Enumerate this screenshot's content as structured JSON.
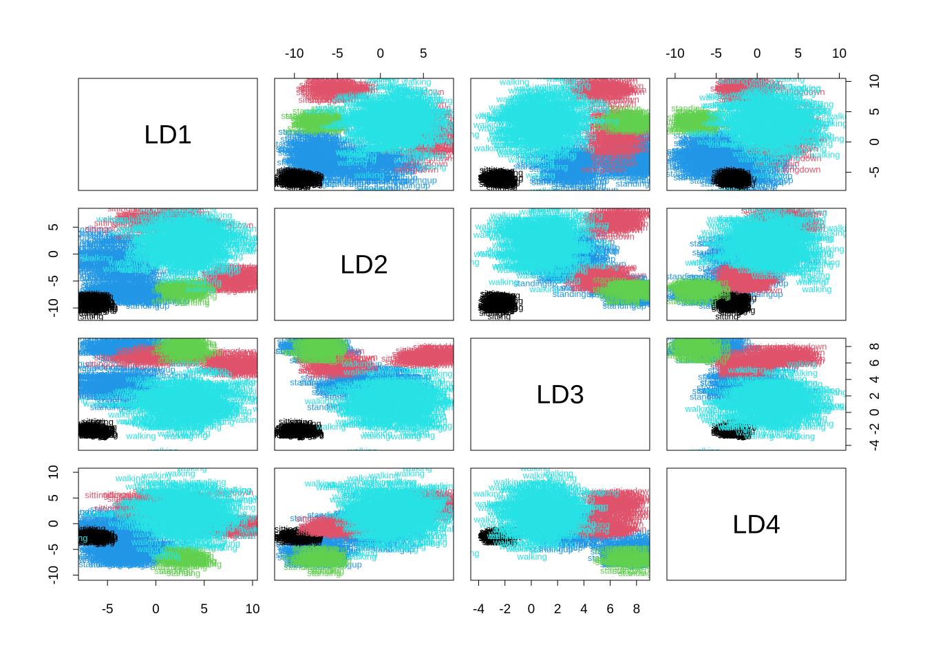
{
  "chart_data": {
    "type": "scatter",
    "variables": [
      "LD1",
      "LD2",
      "LD3",
      "LD4"
    ],
    "ranges": {
      "LD1": [
        -8,
        10.5
      ],
      "LD2": [
        -12.3,
        8.5
      ],
      "LD3": [
        -4.6,
        9
      ],
      "LD4": [
        -11,
        10.8
      ]
    },
    "ticks": {
      "LD1": [
        -5,
        0,
        5,
        10
      ],
      "LD2": [
        -10,
        -5,
        0,
        5
      ],
      "LD3": [
        -4,
        -2,
        0,
        2,
        4,
        6,
        8
      ],
      "LD4": [
        -10,
        -5,
        0,
        5,
        10
      ]
    },
    "class_colors": {
      "sitting": "#000000",
      "sittingdown": "#DF536B",
      "standing": "#61D04F",
      "standingup": "#2297E6",
      "walking": "#28E2E5"
    },
    "point_labels": [
      "sitting",
      "sittingdown",
      "standing",
      "standingup",
      "walking"
    ],
    "clusters": {
      "sitting": [
        {
          "c": [
            -6.5,
            -9.5,
            -2.5,
            -3.0
          ],
          "s": [
            0.6,
            0.8,
            0.35,
            0.6
          ]
        }
      ],
      "sittingdown": [
        {
          "c": [
            0.5,
            5.5,
            6.5,
            3.5
          ],
          "s": [
            2.5,
            1.0,
            0.6,
            1.2
          ]
        },
        {
          "c": [
            8.2,
            -5.0,
            5.5,
            -1.5
          ],
          "s": [
            0.9,
            1.2,
            0.6,
            0.8
          ]
        }
      ],
      "standing": [
        {
          "c": [
            3.0,
            -7.0,
            7.5,
            -7.5
          ],
          "s": [
            0.8,
            1.0,
            0.7,
            1.0
          ]
        }
      ],
      "standingup": [
        {
          "c": [
            -4.0,
            -1.5,
            3.0,
            -1.0
          ],
          "s": [
            2.0,
            2.5,
            1.0,
            2.0
          ]
        },
        {
          "c": [
            -2.5,
            -7.5,
            7.5,
            -6.0
          ],
          "s": [
            2.0,
            1.0,
            0.6,
            1.5
          ]
        }
      ],
      "walking": [
        {
          "c": [
            3.0,
            1.5,
            0.8,
            1.5
          ],
          "s": [
            2.8,
            2.8,
            1.5,
            2.8
          ]
        }
      ]
    }
  }
}
